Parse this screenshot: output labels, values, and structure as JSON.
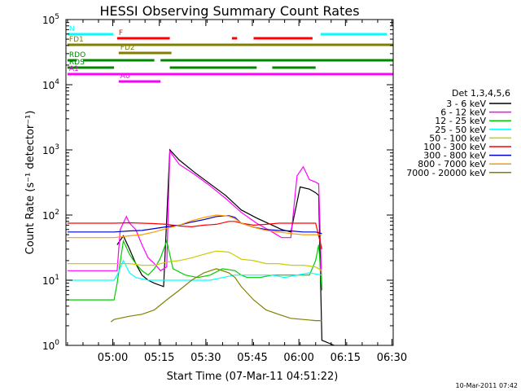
{
  "chart_data": {
    "type": "line",
    "title": "HESSI Observing Summary Count Rates",
    "xlabel": "Start Time (07-Mar-11 04:51:22)",
    "ylabel": "Count Rate (s⁻¹ detector⁻¹)",
    "x_unit": "minutes after 04:51:22",
    "xlim": [
      -6.5,
      99
    ],
    "ylim": [
      1,
      100000
    ],
    "yscale": "log",
    "x_ticks": [
      {
        "x": 8.6,
        "label": "05:00"
      },
      {
        "x": 23.6,
        "label": "05:15"
      },
      {
        "x": 38.6,
        "label": "05:30"
      },
      {
        "x": 53.6,
        "label": "05:45"
      },
      {
        "x": 68.6,
        "label": "06:00"
      },
      {
        "x": 83.6,
        "label": "06:15"
      },
      {
        "x": 98.6,
        "label": "06:30"
      }
    ],
    "y_ticks": [
      {
        "v": 1,
        "base": "10",
        "exp": "0"
      },
      {
        "v": 10,
        "base": "10",
        "exp": "1"
      },
      {
        "v": 100,
        "base": "10",
        "exp": "2"
      },
      {
        "v": 1000,
        "base": "10",
        "exp": "3"
      },
      {
        "v": 10000,
        "base": "10",
        "exp": "4"
      },
      {
        "v": 100000,
        "base": "10",
        "exp": "5"
      }
    ],
    "legend_title": "Det 1,3,4,5,6",
    "legend_position": "right",
    "series": [
      {
        "name": "3 - 6 keV",
        "color": "#000000",
        "points": [
          [
            10,
            35
          ],
          [
            12,
            48
          ],
          [
            14,
            30
          ],
          [
            16,
            18
          ],
          [
            18,
            12
          ],
          [
            20,
            10
          ],
          [
            22,
            9
          ],
          [
            25,
            8
          ],
          [
            27,
            1000
          ],
          [
            30,
            700
          ],
          [
            35,
            450
          ],
          [
            40,
            300
          ],
          [
            45,
            200
          ],
          [
            50,
            120
          ],
          [
            55,
            90
          ],
          [
            60,
            70
          ],
          [
            63,
            60
          ],
          [
            66,
            55
          ],
          [
            69,
            270
          ],
          [
            72,
            250
          ],
          [
            74,
            220
          ],
          [
            75,
            200
          ],
          [
            76,
            1.2
          ],
          [
            80,
            1
          ]
        ]
      },
      {
        "name": "6 - 12 keV",
        "color": "#ff00ff",
        "points": [
          [
            -6,
            14
          ],
          [
            9,
            14
          ],
          [
            10,
            14
          ],
          [
            11,
            60
          ],
          [
            13,
            95
          ],
          [
            14,
            75
          ],
          [
            16,
            60
          ],
          [
            18,
            35
          ],
          [
            20,
            22
          ],
          [
            22,
            18
          ],
          [
            24,
            14
          ],
          [
            26,
            16
          ],
          [
            27,
            950
          ],
          [
            30,
            600
          ],
          [
            35,
            420
          ],
          [
            40,
            280
          ],
          [
            45,
            180
          ],
          [
            50,
            110
          ],
          [
            55,
            75
          ],
          [
            60,
            55
          ],
          [
            63,
            45
          ],
          [
            66,
            45
          ],
          [
            68,
            400
          ],
          [
            70,
            550
          ],
          [
            72,
            350
          ],
          [
            74,
            320
          ],
          [
            75,
            300
          ],
          [
            76,
            7
          ]
        ]
      },
      {
        "name": "12 - 25 keV",
        "color": "#00cc00",
        "points": [
          [
            -6,
            5
          ],
          [
            9,
            5
          ],
          [
            10,
            9
          ],
          [
            12,
            40
          ],
          [
            14,
            25
          ],
          [
            16,
            18
          ],
          [
            18,
            14
          ],
          [
            20,
            12
          ],
          [
            22,
            15
          ],
          [
            24,
            22
          ],
          [
            26,
            40
          ],
          [
            28,
            15
          ],
          [
            32,
            12
          ],
          [
            36,
            11
          ],
          [
            40,
            12
          ],
          [
            44,
            15
          ],
          [
            48,
            14
          ],
          [
            50,
            12
          ],
          [
            52,
            11
          ],
          [
            56,
            11
          ],
          [
            60,
            12
          ],
          [
            64,
            12
          ],
          [
            68,
            12
          ],
          [
            72,
            12
          ],
          [
            74,
            20
          ],
          [
            75,
            35
          ],
          [
            76,
            7
          ]
        ]
      },
      {
        "name": "25 - 50 keV",
        "color": "#00ffff",
        "points": [
          [
            -6,
            10
          ],
          [
            9,
            10
          ],
          [
            10,
            12
          ],
          [
            12,
            20
          ],
          [
            14,
            13
          ],
          [
            16,
            11
          ],
          [
            20,
            10
          ],
          [
            24,
            10
          ],
          [
            28,
            10
          ],
          [
            32,
            10
          ],
          [
            36,
            10
          ],
          [
            40,
            10
          ],
          [
            44,
            11
          ],
          [
            48,
            12
          ],
          [
            52,
            12
          ],
          [
            56,
            12
          ],
          [
            60,
            12
          ],
          [
            64,
            11
          ],
          [
            68,
            12
          ],
          [
            72,
            13
          ],
          [
            76,
            12
          ]
        ]
      },
      {
        "name": "50 - 100 keV",
        "color": "#cccc00",
        "points": [
          [
            -6,
            18
          ],
          [
            9,
            18
          ],
          [
            14,
            18
          ],
          [
            18,
            17
          ],
          [
            22,
            17
          ],
          [
            26,
            19
          ],
          [
            30,
            20
          ],
          [
            34,
            22
          ],
          [
            38,
            25
          ],
          [
            42,
            28
          ],
          [
            46,
            27
          ],
          [
            48,
            24
          ],
          [
            50,
            21
          ],
          [
            54,
            20
          ],
          [
            58,
            18
          ],
          [
            62,
            18
          ],
          [
            66,
            17
          ],
          [
            70,
            17
          ],
          [
            74,
            16
          ],
          [
            76,
            14
          ]
        ]
      },
      {
        "name": "100 - 300 keV",
        "color": "#ff0000",
        "points": [
          [
            -6,
            75
          ],
          [
            9,
            75
          ],
          [
            14,
            76
          ],
          [
            18,
            75
          ],
          [
            22,
            74
          ],
          [
            26,
            72
          ],
          [
            30,
            68
          ],
          [
            34,
            66
          ],
          [
            38,
            70
          ],
          [
            42,
            72
          ],
          [
            46,
            80
          ],
          [
            48,
            80
          ],
          [
            50,
            75
          ],
          [
            54,
            70
          ],
          [
            58,
            72
          ],
          [
            62,
            75
          ],
          [
            66,
            75
          ],
          [
            70,
            75
          ],
          [
            74,
            75
          ],
          [
            76,
            30
          ]
        ]
      },
      {
        "name": "300 - 800 keV",
        "color": "#0000cc",
        "points": [
          [
            -6,
            55
          ],
          [
            9,
            55
          ],
          [
            14,
            57
          ],
          [
            18,
            58
          ],
          [
            22,
            62
          ],
          [
            26,
            66
          ],
          [
            30,
            70
          ],
          [
            34,
            78
          ],
          [
            38,
            85
          ],
          [
            42,
            95
          ],
          [
            46,
            98
          ],
          [
            48,
            92
          ],
          [
            50,
            75
          ],
          [
            54,
            65
          ],
          [
            58,
            60
          ],
          [
            62,
            58
          ],
          [
            66,
            57
          ],
          [
            70,
            55
          ],
          [
            74,
            55
          ],
          [
            76,
            52
          ]
        ]
      },
      {
        "name": "800 - 7000 keV",
        "color": "#ff9900",
        "points": [
          [
            -6,
            45
          ],
          [
            9,
            45
          ],
          [
            14,
            48
          ],
          [
            18,
            50
          ],
          [
            22,
            55
          ],
          [
            26,
            62
          ],
          [
            30,
            70
          ],
          [
            34,
            82
          ],
          [
            38,
            92
          ],
          [
            42,
            100
          ],
          [
            46,
            96
          ],
          [
            48,
            88
          ],
          [
            50,
            75
          ],
          [
            54,
            65
          ],
          [
            58,
            58
          ],
          [
            62,
            55
          ],
          [
            66,
            52
          ],
          [
            70,
            50
          ],
          [
            74,
            50
          ],
          [
            76,
            50
          ]
        ]
      },
      {
        "name": "7000 - 20000 keV",
        "color": "#808000",
        "points": [
          [
            8,
            2.3
          ],
          [
            9,
            2.5
          ],
          [
            14,
            2.8
          ],
          [
            18,
            3
          ],
          [
            22,
            3.5
          ],
          [
            26,
            5
          ],
          [
            30,
            7
          ],
          [
            34,
            10
          ],
          [
            38,
            13
          ],
          [
            42,
            15
          ],
          [
            46,
            13
          ],
          [
            48,
            11
          ],
          [
            50,
            8
          ],
          [
            54,
            5
          ],
          [
            58,
            3.5
          ],
          [
            62,
            3
          ],
          [
            66,
            2.6
          ],
          [
            70,
            2.5
          ],
          [
            74,
            2.4
          ],
          [
            76,
            2.4
          ]
        ]
      }
    ],
    "state_bars": [
      {
        "label": "N",
        "color": "#00ffff",
        "segments": [
          [
            -6,
            8.8
          ],
          [
            75.6,
            97
          ]
        ]
      },
      {
        "label": "F",
        "color": "#ff0000",
        "segments": [
          [
            10,
            27
          ],
          [
            47,
            48.7
          ],
          [
            54,
            73
          ]
        ]
      },
      {
        "label": "FD1",
        "color": "#808000",
        "segments": [
          [
            -6,
            99
          ],
          [
            -6,
            -1
          ]
        ]
      },
      {
        "label": "FD2",
        "color": "#808000",
        "segments": [
          [
            10.5,
            27.5
          ]
        ]
      },
      {
        "label": "RDO",
        "color": "#008800",
        "segments": [
          [
            -6,
            -3
          ],
          [
            -1,
            22
          ],
          [
            24,
            99
          ]
        ]
      },
      {
        "label": "RDS",
        "color": "#008800",
        "segments": [
          [
            -6,
            9
          ],
          [
            27,
            55
          ],
          [
            60,
            74
          ]
        ]
      },
      {
        "label": "A1",
        "color": "#ff00ff",
        "segments": [
          [
            -6,
            99
          ]
        ]
      },
      {
        "label": "A0",
        "color": "#ff00ff",
        "segments": [
          [
            10.5,
            24
          ]
        ]
      }
    ]
  },
  "footer": {
    "timestamp": "10-Mar-2011 07:42"
  }
}
